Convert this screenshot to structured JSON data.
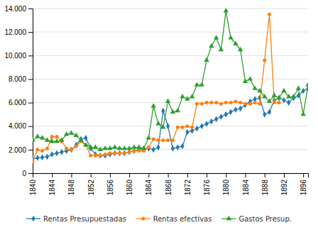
{
  "chart_data": {
    "type": "line",
    "x": [
      1840,
      1841,
      1842,
      1843,
      1844,
      1845,
      1846,
      1847,
      1848,
      1849,
      1850,
      1851,
      1852,
      1853,
      1854,
      1855,
      1856,
      1857,
      1858,
      1859,
      1860,
      1861,
      1862,
      1863,
      1864,
      1865,
      1866,
      1867,
      1868,
      1869,
      1870,
      1871,
      1872,
      1873,
      1874,
      1875,
      1876,
      1877,
      1878,
      1879,
      1880,
      1881,
      1882,
      1883,
      1884,
      1885,
      1886,
      1887,
      1888,
      1889,
      1890,
      1891,
      1892,
      1893,
      1894,
      1895,
      1896,
      1897
    ],
    "series": [
      {
        "name": "Rentas Presupuestadas",
        "marker": "diamond",
        "values": [
          1200,
          1300,
          1350,
          1400,
          1600,
          1700,
          1800,
          1900,
          2000,
          2400,
          2900,
          3000,
          2100,
          1600,
          1500,
          1500,
          1600,
          1700,
          1700,
          1700,
          1800,
          1900,
          2000,
          2100,
          2100,
          2000,
          2200,
          5300,
          4000,
          2100,
          2200,
          2300,
          3500,
          3600,
          3800,
          4000,
          4200,
          4400,
          4600,
          4800,
          5000,
          5200,
          5400,
          5500,
          5800,
          6100,
          6300,
          6400,
          5000,
          5200,
          6200,
          6400,
          6200,
          6000,
          6400,
          6600,
          7000,
          7200
        ]
      },
      {
        "name": "Rentas efectivas",
        "marker": "circle",
        "values": [
          1000,
          2000,
          1900,
          2100,
          3100,
          3100,
          2700,
          2100,
          2000,
          2300,
          2700,
          2400,
          1500,
          1500,
          1500,
          1600,
          1700,
          1700,
          1700,
          1700,
          1800,
          1900,
          1900,
          1900,
          2200,
          2900,
          2800,
          2800,
          2800,
          2800,
          3900,
          3900,
          4000,
          3900,
          5900,
          5900,
          6000,
          6000,
          6000,
          5900,
          6000,
          6000,
          6100,
          6000,
          5900,
          5900,
          6000,
          5900,
          9600,
          13500,
          6000,
          6000,
          null,
          null,
          null,
          null,
          null,
          null
        ]
      },
      {
        "name": "Gastos Presup.",
        "marker": "triangle",
        "values": [
          2800,
          3100,
          3000,
          2800,
          2700,
          2700,
          2800,
          3300,
          3400,
          3200,
          2800,
          2400,
          2200,
          2200,
          2000,
          2100,
          2100,
          2200,
          2100,
          2100,
          2100,
          2200,
          2200,
          2100,
          3000,
          5700,
          4200,
          3900,
          6100,
          5200,
          5300,
          6500,
          6300,
          6500,
          7500,
          7500,
          9600,
          10800,
          11500,
          10500,
          13800,
          11500,
          11000,
          10500,
          7800,
          8000,
          7200,
          7000,
          6500,
          6100,
          6600,
          6400,
          7000,
          6500,
          6500,
          7200,
          5000,
          7500
        ]
      }
    ],
    "xlim": [
      1840,
      1897
    ],
    "xticks": [
      1840,
      1844,
      1848,
      1852,
      1856,
      1860,
      1864,
      1868,
      1872,
      1876,
      1880,
      1884,
      1888,
      1892,
      1896
    ],
    "ylim": [
      0,
      14000
    ],
    "yticks": [
      0,
      {
        "value": 2000,
        "label": "2.000"
      },
      {
        "value": 4000,
        "label": "4.000"
      },
      {
        "value": 6000,
        "label": "6.000"
      },
      {
        "value": 8000,
        "label": "8.000"
      },
      {
        "value": 10000,
        "label": "10.000"
      },
      {
        "value": 12000,
        "label": "12.000"
      },
      {
        "value": 14000,
        "label": "14.000"
      }
    ],
    "grid": true,
    "legend": "bottom"
  }
}
